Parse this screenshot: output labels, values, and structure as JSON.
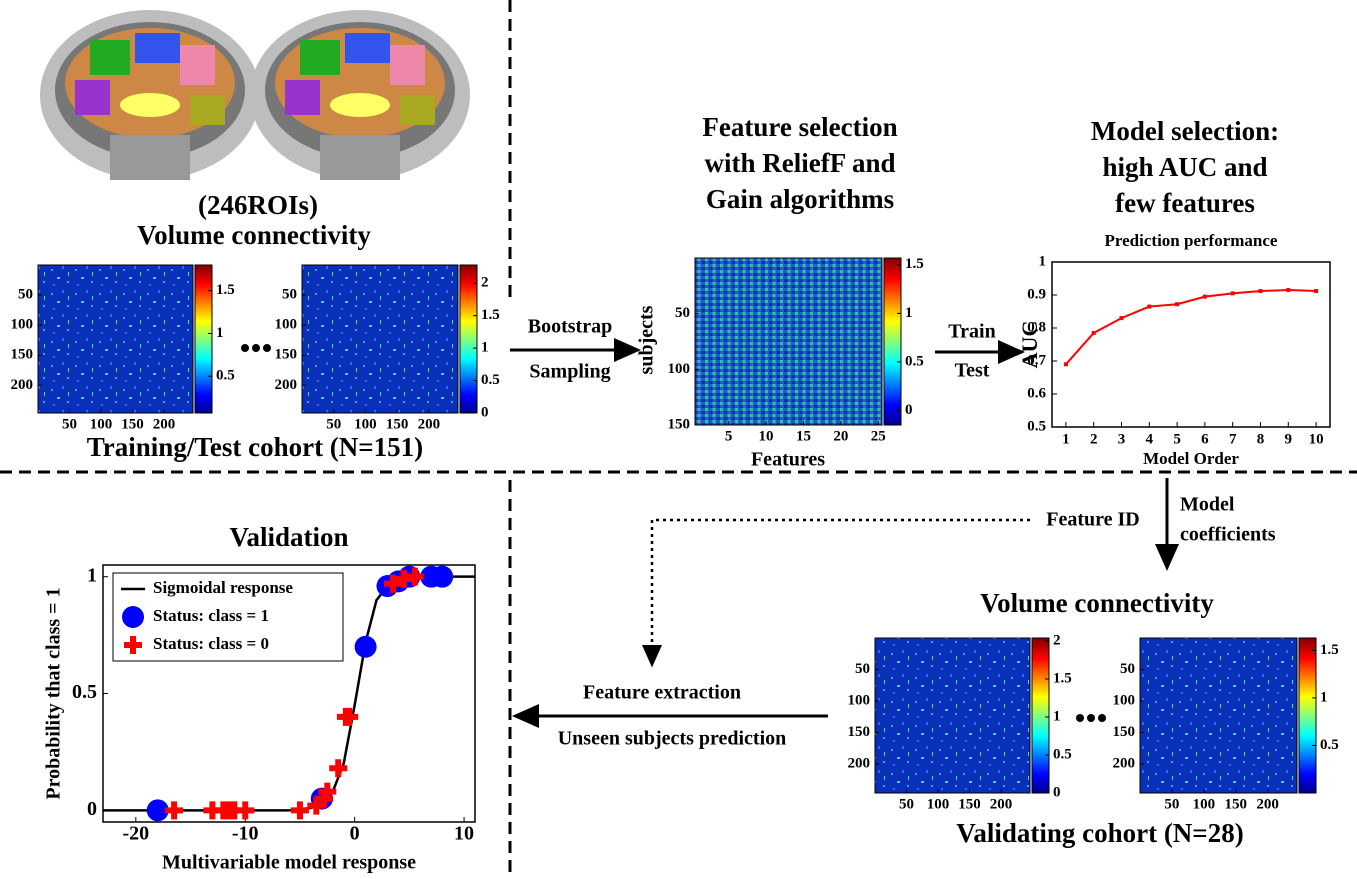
{
  "training": {
    "roi_label": "(246ROIs)",
    "title": "Volume connectivity",
    "caption": "Training/Test cohort (N=151)",
    "matrices": [
      {
        "lim": [
          0,
          246
        ],
        "yticks": [
          50,
          100,
          150,
          200
        ],
        "xticks": [
          50,
          100,
          150,
          200
        ],
        "cbar_lim": [
          0.07,
          1.8
        ],
        "cbar_ticks": [
          0.5,
          1,
          1.5
        ]
      },
      {
        "lim": [
          0,
          246
        ],
        "yticks": [
          50,
          100,
          150,
          200
        ],
        "xticks": [
          50,
          100,
          150,
          200
        ],
        "cbar_lim": [
          0,
          2.28
        ],
        "cbar_ticks": [
          0,
          0.5,
          1,
          1.5,
          2
        ]
      }
    ]
  },
  "bootstrap": {
    "line1": "Bootstrap",
    "line2": "Sampling"
  },
  "feature_selection": {
    "title": [
      "Feature selection",
      "with ReliefF and",
      "Gain algorithms"
    ],
    "ylabel": "subjects",
    "xlabel": "Features",
    "ylim": [
      0,
      150
    ],
    "yticks": [
      50,
      100,
      150
    ],
    "xlim": [
      0.5,
      25.5
    ],
    "xticks": [
      5,
      10,
      15,
      20,
      25
    ],
    "cbar_lim": [
      -0.15,
      1.57
    ],
    "cbar_ticks": [
      0,
      0.5,
      1,
      1.5
    ]
  },
  "train_test": {
    "train": "Train",
    "test": "Test"
  },
  "model_selection": {
    "title": [
      "Model selection:",
      "high AUC and",
      "few features"
    ],
    "chart_data": {
      "type": "line",
      "title": "Prediction performance",
      "xlabel": "Model Order",
      "ylabel": "AUC",
      "x": [
        1,
        2,
        3,
        4,
        5,
        6,
        7,
        8,
        9,
        10
      ],
      "values": [
        0.69,
        0.785,
        0.83,
        0.865,
        0.872,
        0.895,
        0.905,
        0.912,
        0.915,
        0.912
      ],
      "color": "#ff0000",
      "xlim": [
        0.5,
        10.5
      ],
      "xticks": [
        1,
        2,
        3,
        4,
        5,
        6,
        7,
        8,
        9,
        10
      ],
      "ylim": [
        0.5,
        1
      ],
      "yticks": [
        0.5,
        0.6,
        0.7,
        0.8,
        0.9,
        1
      ]
    }
  },
  "arrows": {
    "feature_id": "Feature ID",
    "model_coefficients": [
      "Model",
      "coefficients"
    ],
    "feature_extraction": "Feature extraction",
    "unseen": "Unseen subjects prediction"
  },
  "validating": {
    "title": "Volume connectivity",
    "caption": "Validating cohort (N=28)",
    "matrices": [
      {
        "lim": [
          0,
          246
        ],
        "yticks": [
          50,
          100,
          150,
          200
        ],
        "xticks": [
          50,
          100,
          150,
          200
        ],
        "cbar_lim": [
          0,
          2.04
        ],
        "cbar_ticks": [
          0,
          0.5,
          1,
          1.5,
          2
        ]
      },
      {
        "lim": [
          0,
          246
        ],
        "yticks": [
          50,
          100,
          150,
          200
        ],
        "xticks": [
          50,
          100,
          150,
          200
        ],
        "cbar_lim": [
          0,
          1.63
        ],
        "cbar_ticks": [
          0.5,
          1,
          1.5
        ]
      }
    ]
  },
  "validation": {
    "chart_data": {
      "type": "scatter",
      "title": "Validation",
      "xlabel": "Multivariable model response",
      "ylabel": "Probability that class = 1",
      "xlim": [
        -23,
        11
      ],
      "xticks": [
        -20,
        -10,
        0,
        10
      ],
      "ylim": [
        -0.05,
        1.05
      ],
      "yticks": [
        0,
        0.5,
        1
      ],
      "series": [
        {
          "name": "Sigmoidal response",
          "color": "#000000",
          "kind": "line",
          "x": [
            -23,
            -6,
            -4,
            -3,
            -2,
            -1,
            0,
            1,
            2,
            3,
            4,
            6,
            11
          ],
          "values": [
            0,
            0,
            0.01,
            0.03,
            0.08,
            0.2,
            0.45,
            0.72,
            0.9,
            0.96,
            0.99,
            1,
            1
          ]
        },
        {
          "name": "Status: class = 1",
          "color": "#0000ff",
          "kind": "circle",
          "x": [
            -18,
            -3,
            1,
            3,
            4,
            5,
            7,
            8
          ],
          "values": [
            0,
            0.05,
            0.7,
            0.96,
            0.98,
            1,
            1,
            1
          ]
        },
        {
          "name": "Status: class = 0",
          "color": "#ff0000",
          "kind": "plus",
          "x": [
            -16.5,
            -13,
            -12,
            -11.5,
            -11,
            -10,
            -5,
            -3.5,
            -2.8,
            -2.5,
            -1.5,
            -0.8,
            -0.5,
            3.5,
            4.5,
            5.5
          ],
          "values": [
            0,
            0,
            0,
            0,
            0,
            0,
            0,
            0.02,
            0.05,
            0.08,
            0.18,
            0.4,
            0.4,
            0.97,
            0.99,
            1
          ]
        }
      ]
    }
  }
}
